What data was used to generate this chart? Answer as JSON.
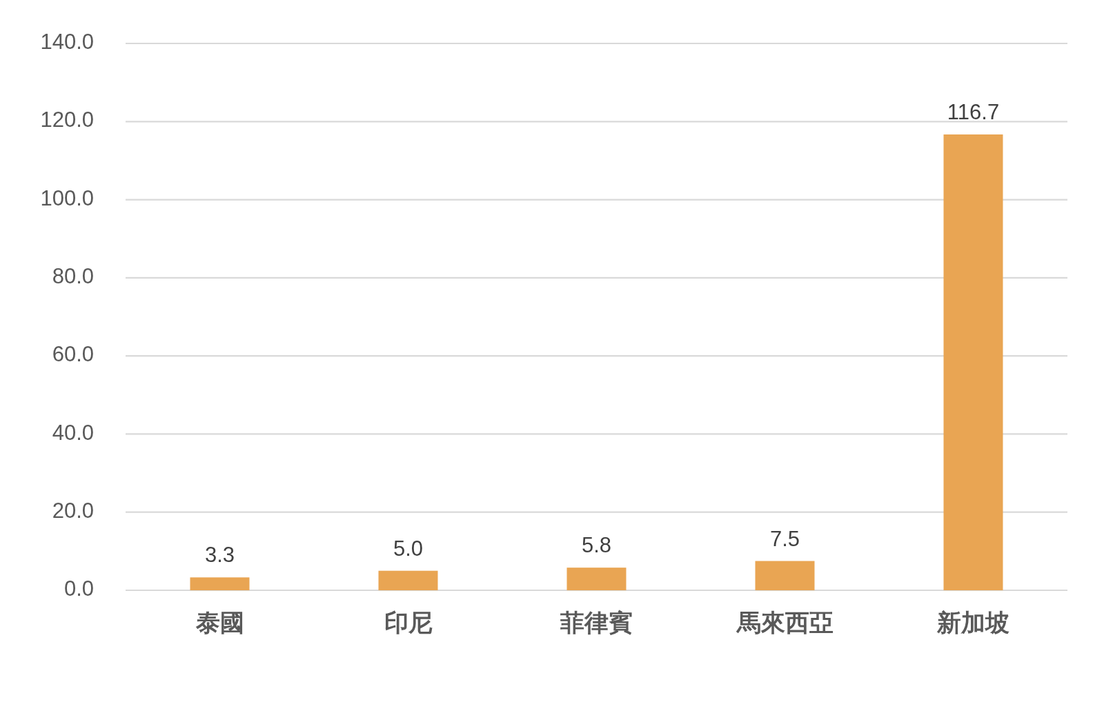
{
  "chart_data": {
    "type": "bar",
    "categories": [
      "泰國",
      "印尼",
      "菲律賓",
      "馬來西亞",
      "新加坡"
    ],
    "values": [
      3.3,
      5.0,
      5.8,
      7.5,
      116.7
    ],
    "value_labels": [
      "3.3",
      "5.0",
      "5.8",
      "7.5",
      "116.7"
    ],
    "color": "#e9a553",
    "ylim": [
      0,
      140
    ],
    "yticks": [
      {
        "value": 0,
        "label": "0.0"
      },
      {
        "value": 20,
        "label": "20.0"
      },
      {
        "value": 40,
        "label": "40.0"
      },
      {
        "value": 60,
        "label": "60.0"
      },
      {
        "value": 80,
        "label": "80.0"
      },
      {
        "value": 100,
        "label": "100.0"
      },
      {
        "value": 120,
        "label": "120.0"
      },
      {
        "value": 140,
        "label": "140.0"
      }
    ],
    "grid": "y"
  }
}
